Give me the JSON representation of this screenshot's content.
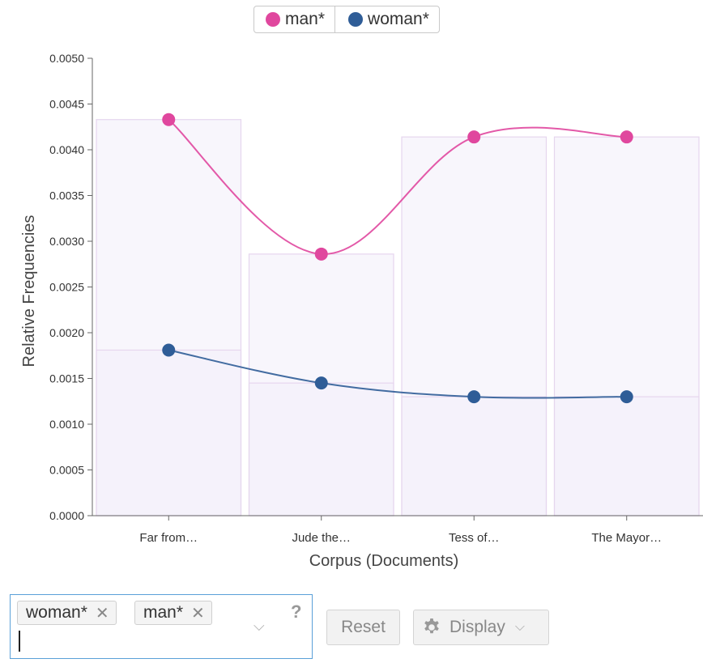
{
  "legend": [
    {
      "label": "man*",
      "color": "#e0479e"
    },
    {
      "label": "woman*",
      "color": "#2f5d97"
    }
  ],
  "chart_data": {
    "type": "line",
    "xlabel": "Corpus (Documents)",
    "ylabel": "Relative Frequencies",
    "categories": [
      "Far from…",
      "Jude the…",
      "Tess of…",
      "The Mayor…"
    ],
    "ylim": [
      0,
      0.005
    ],
    "yticks": [
      "0.0050",
      "0.0045",
      "0.0040",
      "0.0035",
      "0.0030",
      "0.0025",
      "0.0020",
      "0.0015",
      "0.0010",
      "0.0005",
      "0.0000"
    ],
    "series": [
      {
        "name": "man*",
        "color": "#e0479e",
        "values": [
          0.00433,
          0.00286,
          0.00414,
          0.00414
        ]
      },
      {
        "name": "woman*",
        "color": "#2f5d97",
        "values": [
          0.00181,
          0.00145,
          0.0013,
          0.0013
        ]
      }
    ],
    "legend_position": "top-center"
  },
  "controls": {
    "tags": [
      {
        "label": "woman*"
      },
      {
        "label": "man*"
      }
    ],
    "help": "?",
    "reset_label": "Reset",
    "display_label": "Display"
  }
}
